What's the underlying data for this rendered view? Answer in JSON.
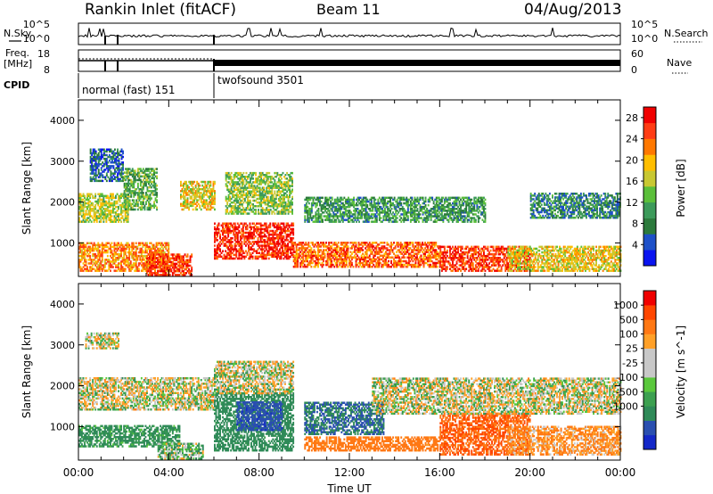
{
  "header": {
    "station": "Rankin Inlet (fitACF)",
    "beam": "Beam 11",
    "date": "04/Aug/2013"
  },
  "panels": {
    "nsky": {
      "left_label": "N.Sky",
      "right_label": "N.Search",
      "left_ticks": [
        "10^5",
        "10^0"
      ],
      "right_ticks": [
        "10^5",
        "10^0"
      ]
    },
    "freq": {
      "left_label_line1": "Freq.",
      "left_label_line2": "[MHz]",
      "right_label": "Nave",
      "left_ticks": [
        "18",
        "8"
      ],
      "right_ticks": [
        "60",
        "0"
      ]
    },
    "cpid": {
      "label": "CPID",
      "modes": [
        {
          "name": "normal (fast) 151",
          "start_hour": 0,
          "end_hour": 6.0
        },
        {
          "name": "twofsound 3501",
          "start_hour": 6.0,
          "end_hour": 24.0
        }
      ]
    }
  },
  "chart_data": [
    {
      "type": "heatmap",
      "title": "",
      "xlabel": "Time UT",
      "ylabel": "Slant Range [km]",
      "xlim": [
        0,
        24
      ],
      "ylim": [
        180,
        4500
      ],
      "x_ticks": [
        "00:00",
        "04:00",
        "08:00",
        "12:00",
        "16:00",
        "20:00",
        "00:00"
      ],
      "y_ticks": [
        1000,
        2000,
        3000,
        4000
      ],
      "colorbar": {
        "label": "Power [dB]",
        "ticks": [
          4,
          8,
          12,
          16,
          20,
          24,
          28
        ],
        "range": [
          0,
          30
        ],
        "colors": [
          "#0a14f0",
          "#1e50c8",
          "#2c7a3c",
          "#3c9a5a",
          "#5bbf3a",
          "#c8c832",
          "#ffbe00",
          "#ff7800",
          "#ff3c14",
          "#f00000"
        ]
      },
      "echo_bands": [
        {
          "start_hour": 0.0,
          "end_hour": 2.2,
          "range_min": 1500,
          "range_max": 2200,
          "value": 16
        },
        {
          "start_hour": 0.0,
          "end_hour": 4.0,
          "range_min": 300,
          "range_max": 1000,
          "value": 22
        },
        {
          "start_hour": 0.5,
          "end_hour": 2.0,
          "range_min": 2500,
          "range_max": 3300,
          "value": 6
        },
        {
          "start_hour": 2.0,
          "end_hour": 3.5,
          "range_min": 1800,
          "range_max": 2800,
          "value": 12
        },
        {
          "start_hour": 3.0,
          "end_hour": 5.0,
          "range_min": 200,
          "range_max": 700,
          "value": 26
        },
        {
          "start_hour": 4.5,
          "end_hour": 6.0,
          "range_min": 1800,
          "range_max": 2500,
          "value": 18
        },
        {
          "start_hour": 6.0,
          "end_hour": 9.5,
          "range_min": 600,
          "range_max": 1500,
          "value": 27
        },
        {
          "start_hour": 6.5,
          "end_hour": 9.5,
          "range_min": 1700,
          "range_max": 2700,
          "value": 14
        },
        {
          "start_hour": 9.5,
          "end_hour": 16.0,
          "range_min": 400,
          "range_max": 1000,
          "value": 24
        },
        {
          "start_hour": 10.0,
          "end_hour": 18.0,
          "range_min": 1500,
          "range_max": 2100,
          "value": 10
        },
        {
          "start_hour": 16.0,
          "end_hour": 20.0,
          "range_min": 300,
          "range_max": 900,
          "value": 26
        },
        {
          "start_hour": 19.0,
          "end_hour": 24.0,
          "range_min": 300,
          "range_max": 900,
          "value": 18
        },
        {
          "start_hour": 20.0,
          "end_hour": 24.0,
          "range_min": 1600,
          "range_max": 2200,
          "value": 8
        }
      ]
    },
    {
      "type": "heatmap",
      "title": "",
      "xlabel": "Time UT",
      "ylabel": "Slant Range [km]",
      "xlim": [
        0,
        24
      ],
      "ylim": [
        180,
        4500
      ],
      "x_ticks": [
        "00:00",
        "04:00",
        "08:00",
        "12:00",
        "16:00",
        "20:00",
        "00:00"
      ],
      "y_ticks": [
        1000,
        2000,
        3000,
        4000
      ],
      "colorbar": {
        "label": "Velocity [m s^-1]",
        "ticks": [
          "1000",
          "500",
          "100",
          "25",
          "-25",
          "-100",
          "-500",
          "-1000"
        ],
        "colors": [
          "#1428c8",
          "#2a4fb0",
          "#2f8a58",
          "#3ca050",
          "#5ac83c",
          "#c8c8c8",
          "#c8c8c8",
          "#ffa028",
          "#ff7814",
          "#ff4600",
          "#f00000"
        ]
      },
      "echo_bands": [
        {
          "start_hour": 0.0,
          "end_hour": 6.0,
          "range_min": 1400,
          "range_max": 2200,
          "value": 0
        },
        {
          "start_hour": 0.0,
          "end_hour": 4.5,
          "range_min": 500,
          "range_max": 1000,
          "value": 150
        },
        {
          "start_hour": 0.3,
          "end_hour": 1.8,
          "range_min": 2900,
          "range_max": 3300,
          "value": 0
        },
        {
          "start_hour": 3.5,
          "end_hour": 5.5,
          "range_min": 200,
          "range_max": 600,
          "value": 60
        },
        {
          "start_hour": 6.0,
          "end_hour": 9.5,
          "range_min": 400,
          "range_max": 1800,
          "value": 200
        },
        {
          "start_hour": 7.0,
          "end_hour": 9.0,
          "range_min": 900,
          "range_max": 1600,
          "value": 700
        },
        {
          "start_hour": 6.0,
          "end_hour": 9.5,
          "range_min": 1800,
          "range_max": 2600,
          "value": 0
        },
        {
          "start_hour": 10.0,
          "end_hour": 13.5,
          "range_min": 800,
          "range_max": 1600,
          "value": 400
        },
        {
          "start_hour": 10.0,
          "end_hour": 16.0,
          "range_min": 400,
          "range_max": 750,
          "value": -200
        },
        {
          "start_hour": 16.0,
          "end_hour": 20.0,
          "range_min": 300,
          "range_max": 1300,
          "value": -400
        },
        {
          "start_hour": 19.0,
          "end_hour": 24.0,
          "range_min": 300,
          "range_max": 1000,
          "value": -100
        },
        {
          "start_hour": 13.0,
          "end_hour": 24.0,
          "range_min": 1300,
          "range_max": 2200,
          "value": 0
        }
      ]
    }
  ]
}
